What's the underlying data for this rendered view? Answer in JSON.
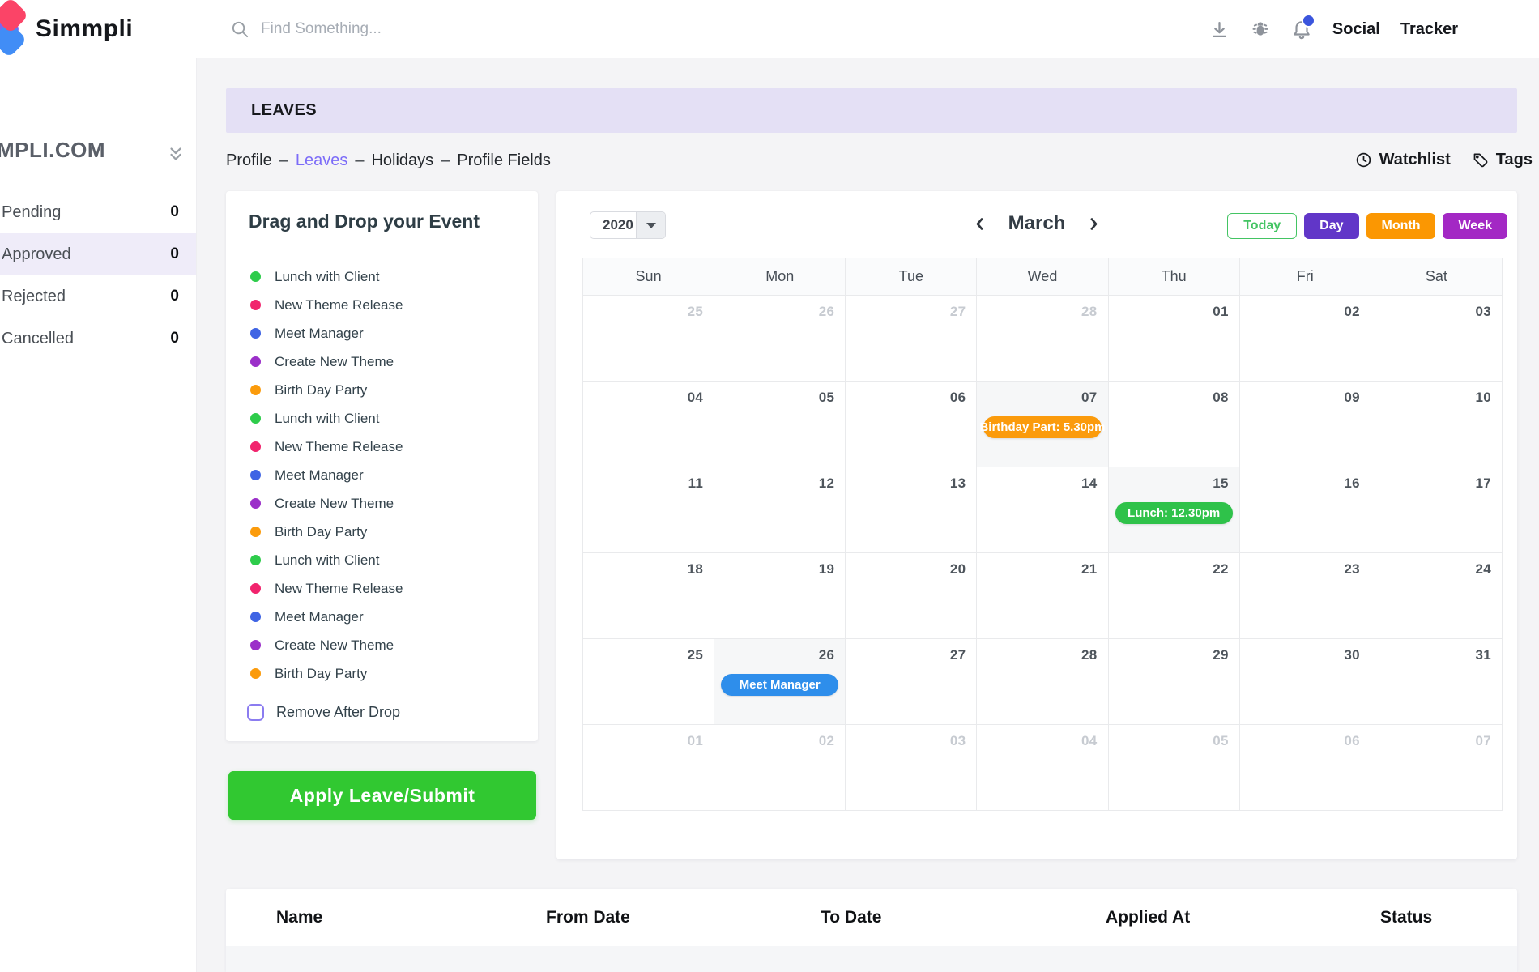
{
  "topbar": {
    "brand": "Simmpli",
    "search": {
      "placeholder": "Find Something...",
      "icon": "search-icon"
    },
    "icons": [
      "download-icon",
      "bug-icon",
      "bell-icon"
    ],
    "notification_dot_color": "#3b55dd",
    "links": [
      {
        "label": "Social"
      },
      {
        "label": "Tracker"
      }
    ]
  },
  "sidebar": {
    "title": "MPLI.COM",
    "collapse_icon": "chevron-double-down-icon",
    "items": [
      {
        "label": "Pending",
        "count": "0",
        "active": false
      },
      {
        "label": "Approved",
        "count": "0",
        "active": true
      },
      {
        "label": "Rejected",
        "count": "0",
        "active": false
      },
      {
        "label": "Cancelled",
        "count": "0",
        "active": false
      }
    ]
  },
  "page": {
    "title": "LEAVES",
    "breadcrumb_separator": "–",
    "breadcrumb": [
      {
        "label": "Profile",
        "style": "normal"
      },
      {
        "label": "Leaves",
        "style": "active"
      },
      {
        "label": "Holidays",
        "style": "normal"
      },
      {
        "label": "Profile Fields",
        "style": "normal"
      }
    ],
    "actions": [
      {
        "label": "Watchlist",
        "icon": "clock-icon"
      },
      {
        "label": "Tags",
        "icon": "tag-icon"
      }
    ]
  },
  "drag_panel": {
    "title": "Drag and Drop your Event",
    "events": [
      {
        "label": "Lunch with Client",
        "color": "#2ecc4b"
      },
      {
        "label": "New Theme Release",
        "color": "#f1246d"
      },
      {
        "label": "Meet Manager",
        "color": "#3f64e4"
      },
      {
        "label": "Create New Theme",
        "color": "#9b2fc9"
      },
      {
        "label": "Birth Day Party",
        "color": "#fb9b0c"
      },
      {
        "label": "Lunch with Client",
        "color": "#2ecc4b"
      },
      {
        "label": "New Theme Release",
        "color": "#f1246d"
      },
      {
        "label": "Meet Manager",
        "color": "#3f64e4"
      },
      {
        "label": "Create New Theme",
        "color": "#9b2fc9"
      },
      {
        "label": "Birth Day Party",
        "color": "#fb9b0c"
      },
      {
        "label": "Lunch with Client",
        "color": "#2ecc4b"
      },
      {
        "label": "New Theme Release",
        "color": "#f1246d"
      },
      {
        "label": "Meet Manager",
        "color": "#3f64e4"
      },
      {
        "label": "Create New Theme",
        "color": "#9b2fc9"
      },
      {
        "label": "Birth Day Party",
        "color": "#fb9b0c"
      }
    ],
    "checkbox": {
      "label": "Remove After Drop",
      "checked": false
    },
    "submit_label": "Apply Leave/Submit"
  },
  "calendar": {
    "year": "2020",
    "month": "March",
    "views": [
      {
        "label": "Today",
        "variant": "outline-green"
      },
      {
        "label": "Day",
        "variant": "purple"
      },
      {
        "label": "Month",
        "variant": "orange"
      },
      {
        "label": "Week",
        "variant": "magenta"
      }
    ],
    "day_headers": [
      "Sun",
      "Mon",
      "Tue",
      "Wed",
      "Thu",
      "Fri",
      "Sat"
    ],
    "cells": [
      {
        "date": "25",
        "muted": true
      },
      {
        "date": "26",
        "muted": true
      },
      {
        "date": "27",
        "muted": true
      },
      {
        "date": "28",
        "muted": true
      },
      {
        "date": "01",
        "muted": false
      },
      {
        "date": "02",
        "muted": false
      },
      {
        "date": "03",
        "muted": false
      },
      {
        "date": "04",
        "muted": false
      },
      {
        "date": "05",
        "muted": false
      },
      {
        "date": "06",
        "muted": false
      },
      {
        "date": "07",
        "muted": false,
        "event": {
          "label": "Birthday Part: 5.30pm",
          "color": "#fb9b0c"
        }
      },
      {
        "date": "08",
        "muted": false
      },
      {
        "date": "09",
        "muted": false
      },
      {
        "date": "10",
        "muted": false
      },
      {
        "date": "11",
        "muted": false
      },
      {
        "date": "12",
        "muted": false
      },
      {
        "date": "13",
        "muted": false
      },
      {
        "date": "14",
        "muted": false
      },
      {
        "date": "15",
        "muted": false,
        "event": {
          "label": "Lunch: 12.30pm",
          "color": "#2fc24a"
        }
      },
      {
        "date": "16",
        "muted": false
      },
      {
        "date": "17",
        "muted": false
      },
      {
        "date": "18",
        "muted": false
      },
      {
        "date": "19",
        "muted": false
      },
      {
        "date": "20",
        "muted": false
      },
      {
        "date": "21",
        "muted": false
      },
      {
        "date": "22",
        "muted": false
      },
      {
        "date": "23",
        "muted": false
      },
      {
        "date": "24",
        "muted": false
      },
      {
        "date": "25",
        "muted": false
      },
      {
        "date": "26",
        "muted": false,
        "event": {
          "label": "Meet Manager",
          "color": "#2e8eeb"
        }
      },
      {
        "date": "27",
        "muted": false
      },
      {
        "date": "28",
        "muted": false
      },
      {
        "date": "29",
        "muted": false
      },
      {
        "date": "30",
        "muted": false
      },
      {
        "date": "31",
        "muted": false
      },
      {
        "date": "01",
        "muted": true
      },
      {
        "date": "02",
        "muted": true
      },
      {
        "date": "03",
        "muted": true
      },
      {
        "date": "04",
        "muted": true
      },
      {
        "date": "05",
        "muted": true
      },
      {
        "date": "06",
        "muted": true
      },
      {
        "date": "07",
        "muted": true
      }
    ]
  },
  "leave_table": {
    "headers": [
      "Name",
      "From Date",
      "To Date",
      "Applied At",
      "Status"
    ]
  },
  "colors": {
    "leaves_bar_bg": "#e4e0f5",
    "sidebar_active_bg": "#efecf9",
    "breadcrumb_active": "#7c6cf8",
    "apply_button": "#31c831",
    "today_green": "#43c463",
    "day_purple": "#6136c8",
    "month_orange": "#fb9702",
    "week_magenta": "#a328c4",
    "event_cell_bg": "#f6f7f8"
  }
}
